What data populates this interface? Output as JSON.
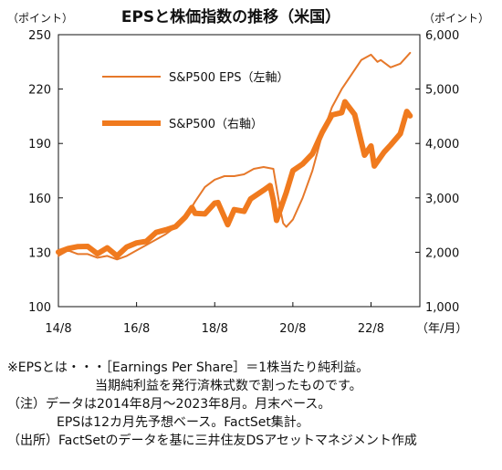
{
  "chart_data": {
    "type": "line",
    "title": "EPSと株価指数の推移（米国）",
    "left_unit": "（ポイント）",
    "right_unit": "（ポイント）",
    "x_unit": "（年/月）",
    "left_axis": {
      "min": 100,
      "max": 250,
      "ticks": [
        "100",
        "130",
        "160",
        "190",
        "220",
        "250"
      ]
    },
    "right_axis": {
      "min": 1000,
      "max": 6000,
      "ticks": [
        "1,000",
        "2,000",
        "3,000",
        "4,000",
        "5,000",
        "6,000"
      ]
    },
    "x_ticks": [
      "14/8",
      "16/8",
      "18/8",
      "20/8",
      "22/8"
    ],
    "grid": false,
    "legend": [
      {
        "label": "S&P500 EPS（左軸）",
        "style": "thin"
      },
      {
        "label": "S&P500（右軸）",
        "style": "thick"
      }
    ],
    "colors": {
      "eps": "#e6782a",
      "index": "#f07a1e"
    },
    "series": [
      {
        "name": "S&P500 EPS（左軸）",
        "axis": "left",
        "x": [
          "2014-08",
          "2014-11",
          "2015-02",
          "2015-05",
          "2015-08",
          "2015-11",
          "2016-02",
          "2016-05",
          "2016-08",
          "2016-11",
          "2017-02",
          "2017-05",
          "2017-08",
          "2017-11",
          "2018-02",
          "2018-05",
          "2018-08",
          "2018-11",
          "2019-02",
          "2019-05",
          "2019-08",
          "2019-11",
          "2020-02",
          "2020-04",
          "2020-05",
          "2020-06",
          "2020-08",
          "2020-11",
          "2021-02",
          "2021-05",
          "2021-08",
          "2021-11",
          "2022-02",
          "2022-05",
          "2022-08",
          "2022-10",
          "2022-11",
          "2023-02",
          "2023-05",
          "2023-08"
        ],
        "values": [
          128,
          131,
          129,
          129,
          127,
          128,
          126,
          128,
          131,
          134,
          137,
          140,
          144,
          149,
          158,
          166,
          170,
          172,
          172,
          173,
          176,
          177,
          176,
          155,
          146,
          144,
          148,
          160,
          175,
          195,
          210,
          220,
          228,
          236,
          239,
          235,
          236,
          232,
          234,
          240
        ]
      },
      {
        "name": "S&P500（右軸）",
        "axis": "right",
        "x": [
          "2014-08",
          "2014-11",
          "2015-02",
          "2015-05",
          "2015-08",
          "2015-11",
          "2016-02",
          "2016-05",
          "2016-08",
          "2016-11",
          "2017-02",
          "2017-05",
          "2017-08",
          "2017-11",
          "2018-01",
          "2018-02",
          "2018-05",
          "2018-08",
          "2018-09",
          "2018-12",
          "2019-02",
          "2019-05",
          "2019-07",
          "2019-11",
          "2020-01",
          "2020-02",
          "2020-03",
          "2020-06",
          "2020-08",
          "2020-11",
          "2021-02",
          "2021-05",
          "2021-08",
          "2021-11",
          "2021-12",
          "2022-03",
          "2022-06",
          "2022-08",
          "2022-09",
          "2022-12",
          "2023-02",
          "2023-05",
          "2023-07",
          "2023-08"
        ],
        "values": [
          2003,
          2068,
          2104,
          2108,
          1972,
          2080,
          1932,
          2097,
          2171,
          2199,
          2364,
          2412,
          2472,
          2648,
          2824,
          2714,
          2705,
          2902,
          2914,
          2507,
          2784,
          2752,
          2980,
          3141,
          3226,
          2954,
          2585,
          3100,
          3500,
          3622,
          3811,
          4204,
          4523,
          4567,
          4766,
          4530,
          3785,
          3955,
          3586,
          3840,
          3970,
          4180,
          4589,
          4508
        ]
      }
    ]
  },
  "notes": [
    "※EPSとは・・・［Earnings Per Share］＝1株当たり純利益。",
    "当期純利益を発行済株式数で割ったものです。",
    "（注）データは2014年8月～2023年8月。月末ベース。",
    "EPSは12カ月先予想ベース。FactSet集計。",
    "（出所）FactSetのデータを基に三井住友DSアセットマネジメント作成"
  ]
}
